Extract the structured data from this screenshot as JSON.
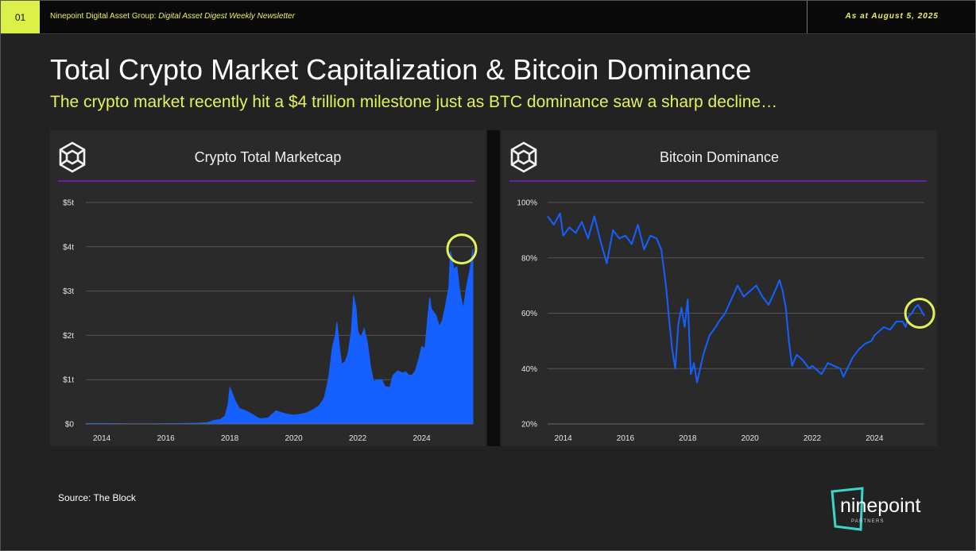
{
  "header": {
    "page_number": "01",
    "org": "Ninepoint Digital Asset Group:",
    "publication": "Digital Asset Digest Weekly Newsletter",
    "date": "As at August 5, 2025"
  },
  "title": "Total Crypto Market Capitalization & Bitcoin Dominance",
  "subtitle": "The crypto market recently hit a $4 trillion milestone just as BTC dominance saw a sharp decline…",
  "source": "Source: The Block",
  "brand": {
    "name": "ninepoint",
    "tagline": "PARTNERS"
  },
  "colors": {
    "accent": "#e4f25a",
    "series": "#1560ff",
    "divider": "#6a1fa8",
    "highlight_circle": "#e4f25a"
  },
  "chart_data": [
    {
      "type": "area",
      "title": "Crypto Total Marketcap",
      "xlabel": "",
      "ylabel": "",
      "xlim": [
        2013.5,
        2025.6
      ],
      "ylim": [
        0,
        5
      ],
      "y_unit": "trillion USD",
      "yticks": [
        0,
        1,
        2,
        3,
        4,
        5
      ],
      "ytick_labels": [
        "$0",
        "$1t",
        "$2t",
        "$3t",
        "$4t",
        "$5t"
      ],
      "xticks": [
        2014,
        2016,
        2018,
        2020,
        2022,
        2024
      ],
      "xtick_labels": [
        "2014",
        "2016",
        "2018",
        "2020",
        "2022",
        "2024"
      ],
      "grid": true,
      "highlight": {
        "x": 2025.6,
        "y": 3.95,
        "label": ""
      },
      "series": [
        {
          "x": [
            2013.5,
            2014.0,
            2015.0,
            2016.0,
            2016.5,
            2017.0,
            2017.3,
            2017.5,
            2017.7,
            2017.85,
            2017.95,
            2018.0,
            2018.05,
            2018.15,
            2018.3,
            2018.5,
            2018.7,
            2018.9,
            2019.0,
            2019.2,
            2019.45,
            2019.6,
            2019.8,
            2020.0,
            2020.2,
            2020.4,
            2020.6,
            2020.8,
            2020.95,
            2021.05,
            2021.1,
            2021.2,
            2021.3,
            2021.35,
            2021.45,
            2021.5,
            2021.6,
            2021.7,
            2021.8,
            2021.87,
            2021.95,
            2022.0,
            2022.1,
            2022.2,
            2022.3,
            2022.4,
            2022.5,
            2022.6,
            2022.75,
            2022.85,
            2023.0,
            2023.1,
            2023.25,
            2023.4,
            2023.5,
            2023.6,
            2023.7,
            2023.8,
            2023.9,
            2024.0,
            2024.1,
            2024.2,
            2024.25,
            2024.3,
            2024.45,
            2024.55,
            2024.65,
            2024.75,
            2024.85,
            2024.9,
            2024.95,
            2025.0,
            2025.1,
            2025.2,
            2025.3,
            2025.4,
            2025.5,
            2025.55,
            2025.6
          ],
          "values": [
            0.01,
            0.01,
            0.005,
            0.007,
            0.01,
            0.018,
            0.03,
            0.08,
            0.1,
            0.18,
            0.45,
            0.82,
            0.75,
            0.55,
            0.35,
            0.3,
            0.22,
            0.13,
            0.12,
            0.14,
            0.3,
            0.26,
            0.22,
            0.2,
            0.22,
            0.25,
            0.32,
            0.42,
            0.58,
            0.9,
            1.1,
            1.7,
            2.0,
            2.3,
            1.6,
            1.35,
            1.4,
            1.6,
            2.1,
            2.9,
            2.6,
            2.1,
            1.95,
            2.15,
            1.85,
            1.3,
            0.95,
            1.0,
            1.0,
            0.85,
            0.82,
            1.1,
            1.2,
            1.15,
            1.18,
            1.1,
            1.1,
            1.2,
            1.45,
            1.75,
            1.7,
            2.5,
            2.85,
            2.6,
            2.45,
            2.2,
            2.35,
            2.7,
            3.1,
            3.9,
            3.75,
            3.5,
            3.55,
            2.95,
            2.6,
            3.1,
            3.45,
            3.7,
            3.95
          ]
        }
      ]
    },
    {
      "type": "line",
      "title": "Bitcoin Dominance",
      "xlabel": "",
      "ylabel": "",
      "xlim": [
        2013.5,
        2025.6
      ],
      "ylim": [
        20,
        100
      ],
      "y_unit": "percent",
      "yticks": [
        20,
        40,
        60,
        80,
        100
      ],
      "ytick_labels": [
        "20%",
        "40%",
        "60%",
        "80%",
        "100%"
      ],
      "xticks": [
        2014,
        2016,
        2018,
        2020,
        2022,
        2024
      ],
      "xtick_labels": [
        "2014",
        "2016",
        "2018",
        "2020",
        "2022",
        "2024"
      ],
      "grid": true,
      "highlight": {
        "x": 2025.45,
        "y": 60,
        "label": ""
      },
      "series": [
        {
          "x": [
            2013.5,
            2013.7,
            2013.9,
            2014.0,
            2014.2,
            2014.4,
            2014.6,
            2014.8,
            2015.0,
            2015.2,
            2015.4,
            2015.6,
            2015.8,
            2016.0,
            2016.2,
            2016.4,
            2016.6,
            2016.8,
            2017.0,
            2017.15,
            2017.3,
            2017.4,
            2017.5,
            2017.6,
            2017.7,
            2017.8,
            2017.9,
            2018.0,
            2018.1,
            2018.2,
            2018.3,
            2018.5,
            2018.7,
            2018.9,
            2019.0,
            2019.2,
            2019.4,
            2019.6,
            2019.8,
            2020.0,
            2020.2,
            2020.4,
            2020.6,
            2020.8,
            2020.95,
            2021.05,
            2021.15,
            2021.25,
            2021.35,
            2021.5,
            2021.7,
            2021.9,
            2022.0,
            2022.3,
            2022.5,
            2022.7,
            2022.9,
            2023.0,
            2023.3,
            2023.5,
            2023.7,
            2023.9,
            2024.0,
            2024.3,
            2024.5,
            2024.7,
            2024.9,
            2025.0,
            2025.1,
            2025.2,
            2025.3,
            2025.4,
            2025.5,
            2025.6
          ],
          "values": [
            95,
            92,
            96,
            88,
            91,
            89,
            93,
            87,
            95,
            86,
            78,
            90,
            87,
            88,
            85,
            92,
            83,
            88,
            87,
            83,
            70,
            58,
            47,
            40,
            56,
            62,
            55,
            65,
            38,
            42,
            35,
            45,
            52,
            55,
            57,
            60,
            65,
            70,
            66,
            68,
            70,
            66,
            63,
            68,
            72,
            68,
            62,
            50,
            41,
            45,
            43,
            40,
            41,
            38,
            42,
            41,
            40,
            37,
            44,
            47,
            49,
            50,
            52,
            55,
            54,
            57,
            57,
            55,
            59,
            60,
            62,
            63,
            61,
            59
          ]
        }
      ]
    }
  ]
}
